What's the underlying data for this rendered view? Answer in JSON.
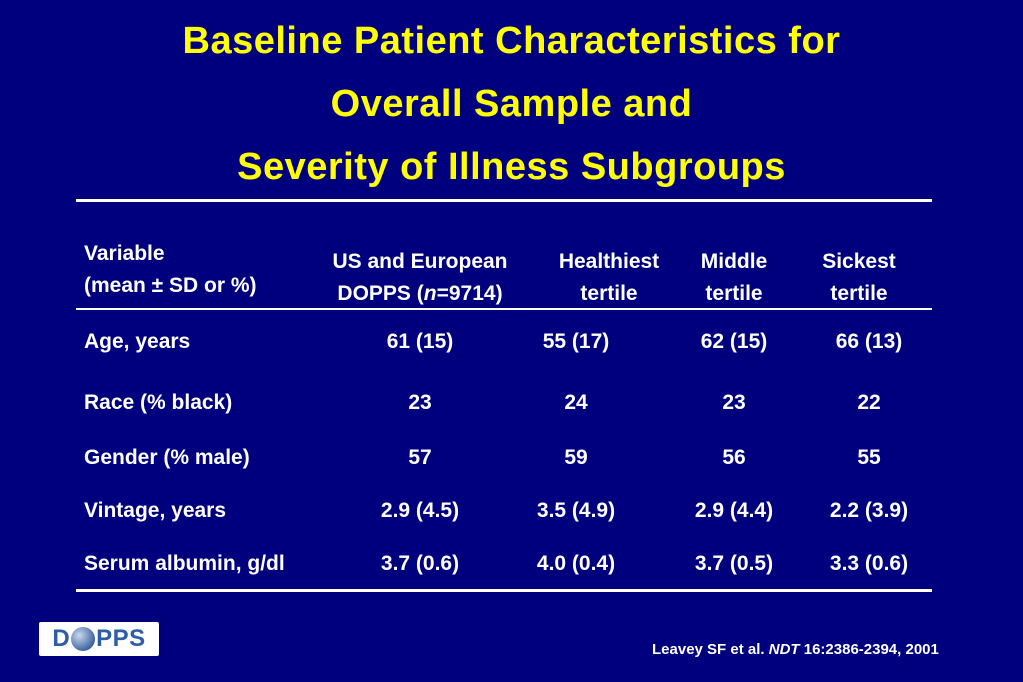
{
  "title_lines": [
    "Baseline Patient Characteristics for",
    "Overall Sample and",
    "Severity of Illness Subgroups"
  ],
  "table": {
    "headers": {
      "variable": [
        "Variable",
        "(mean ± SD or %)"
      ],
      "overall": [
        "US and European",
        "DOPPS (n=9714)"
      ],
      "healthiest": [
        "Healthiest",
        "tertile"
      ],
      "middle": [
        "Middle",
        "tertile"
      ],
      "sickest": [
        "Sickest",
        "tertile"
      ]
    },
    "rows": [
      {
        "label": "Age, years",
        "overall": "61 (15)",
        "healthiest": "55 (17)",
        "middle": "62 (15)",
        "sickest": "66 (13)"
      },
      {
        "label": "Race (% black)",
        "overall": "23",
        "healthiest": "24",
        "middle": "23",
        "sickest": "22"
      },
      {
        "label": "Gender (% male)",
        "overall": "57",
        "healthiest": "59",
        "middle": "56",
        "sickest": "55"
      },
      {
        "label": "Vintage, years",
        "overall": "2.9 (4.5)",
        "healthiest": "3.5 (4.9)",
        "middle": "2.9 (4.4)",
        "sickest": "2.2 (3.9)"
      },
      {
        "label": "Serum albumin, g/dl",
        "overall": "3.7 (0.6)",
        "healthiest": "4.0 (0.4)",
        "middle": "3.7 (0.5)",
        "sickest": "3.3 (0.6)"
      }
    ]
  },
  "logo": {
    "left": "D",
    "right": "PPS"
  },
  "citation": {
    "prefix": "Leavey SF et al.",
    "journal": "NDT",
    "suffix": "16:2386-2394, 2001"
  },
  "colors": {
    "background": "#00007f",
    "title": "#ffff00",
    "text": "#ffffff",
    "logo_text": "#2f5da6"
  }
}
